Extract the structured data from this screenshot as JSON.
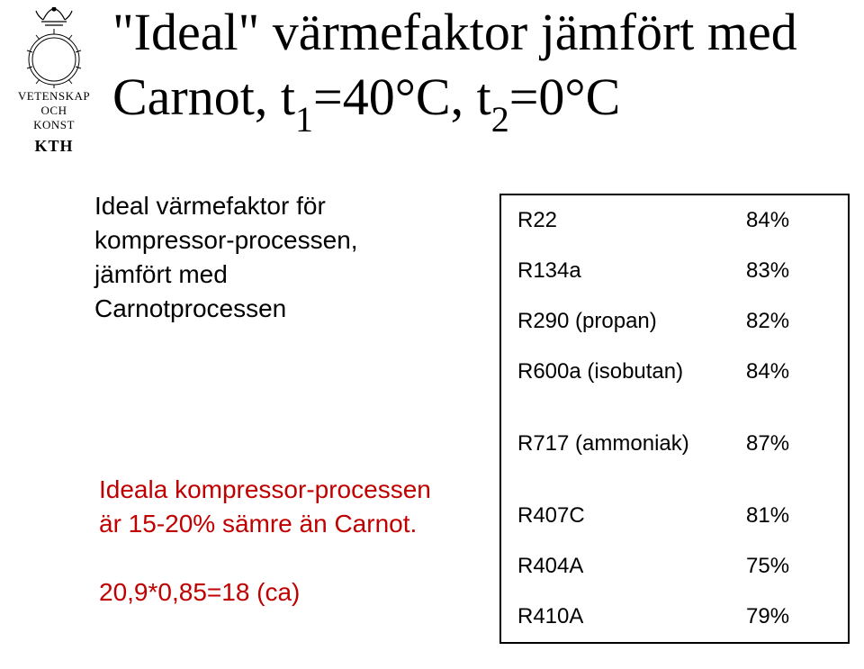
{
  "logo": {
    "line1": "VETENSKAP",
    "line2": "OCH",
    "line3": "KONST",
    "kth": "KTH"
  },
  "title": {
    "pre": "\"Ideal\" värmefaktor jämfört med Carnot, t",
    "sub1": "1",
    "mid": "=40°C, t",
    "sub2": "2",
    "post": "=0°C"
  },
  "block1": "Ideal värmefaktor för kompressor-processen, jämfört med Carnotprocessen",
  "block2": "Ideala kompressor-processen är 15-20% sämre än Carnot.",
  "block3": "20,9*0,85=18 (ca)",
  "table": {
    "rows": [
      {
        "name": "R22",
        "pct": "84%"
      },
      {
        "name": "R134a",
        "pct": "83%"
      },
      {
        "name": "R290 (propan)",
        "pct": "82%"
      },
      {
        "name": "R600a (isobutan)",
        "pct": "84%"
      },
      {
        "name": "R717 (ammoniak)",
        "pct": "87%"
      },
      {
        "name": "R407C",
        "pct": "81%"
      },
      {
        "name": "R404A",
        "pct": "75%"
      },
      {
        "name": "R410A",
        "pct": "79%"
      }
    ],
    "gap_after": [
      3,
      4
    ]
  },
  "colors": {
    "red": "#c00000",
    "black": "#000000",
    "bg": "#ffffff"
  }
}
